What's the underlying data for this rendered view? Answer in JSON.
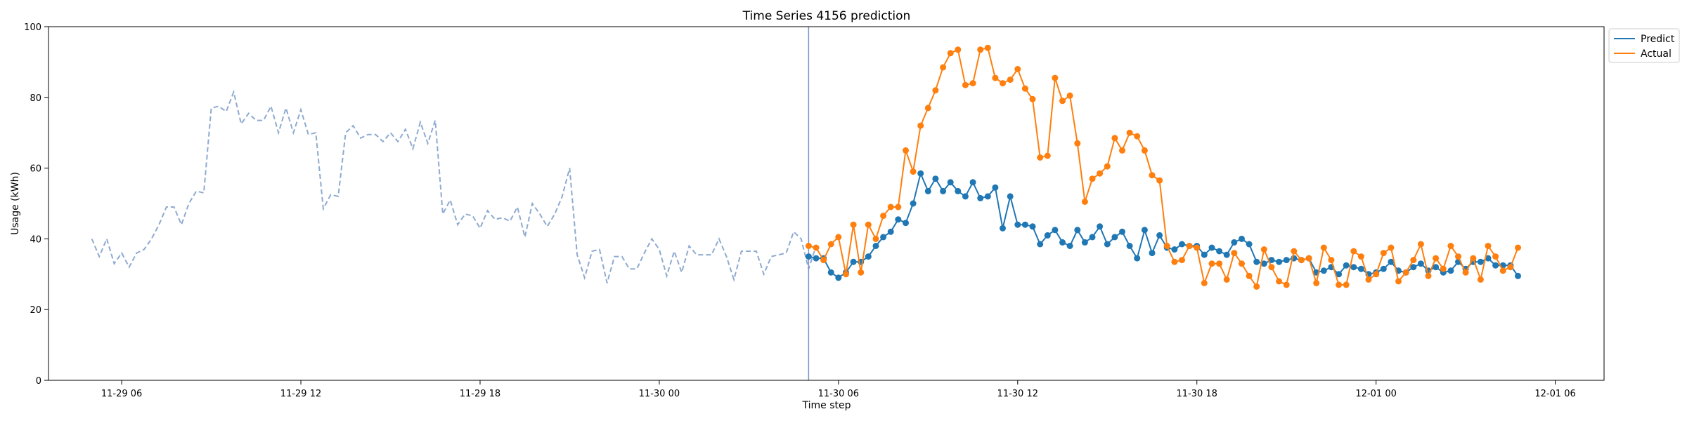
{
  "chart_data": {
    "type": "line",
    "title": "Time Series 4156 prediction",
    "xlabel": "Time step",
    "ylabel": "Usage (kWh)",
    "ylim": [
      0,
      100
    ],
    "yticks": [
      0,
      20,
      40,
      60,
      80,
      100
    ],
    "x_unit": "time",
    "x_range": [
      "2024-11-29 03:33",
      "2024-12-01 07:38"
    ],
    "xticks": [
      {
        "label": "11-29 06",
        "t": "2024-11-29 06:00"
      },
      {
        "label": "11-29 12",
        "t": "2024-11-29 12:00"
      },
      {
        "label": "11-29 18",
        "t": "2024-11-29 18:00"
      },
      {
        "label": "11-30 00",
        "t": "2024-11-30 00:00"
      },
      {
        "label": "11-30 06",
        "t": "2024-11-30 06:00"
      },
      {
        "label": "11-30 12",
        "t": "2024-11-30 12:00"
      },
      {
        "label": "11-30 18",
        "t": "2024-11-30 18:00"
      },
      {
        "label": "12-01 00",
        "t": "2024-12-01 00:00"
      },
      {
        "label": "12-01 06",
        "t": "2024-12-01 06:00"
      }
    ],
    "forecast_start": "2024-11-30 05:00",
    "legend": {
      "placement": "upper-right outside",
      "entries": [
        "Predict",
        "Actual"
      ]
    },
    "colors": {
      "predict": "#1f77b4",
      "actual": "#ff7f0e",
      "history": "#8eaad0",
      "divider": "#7b93c2"
    },
    "history": {
      "style": "dashed",
      "start": "2024-11-29 05:00",
      "step_minutes": 15,
      "values": [
        40,
        35,
        40,
        33,
        36,
        32,
        36,
        37,
        40,
        44,
        49,
        49,
        44,
        50,
        53.5,
        53,
        77,
        77.5,
        76,
        81.5,
        72.5,
        75.5,
        73.5,
        73.5,
        77.5,
        70,
        77,
        70,
        76.5,
        69.5,
        70,
        48.5,
        52.5,
        52,
        70,
        72,
        68.5,
        69.5,
        69.5,
        67.5,
        70,
        67.5,
        71,
        65.5,
        73,
        67,
        73.5,
        47,
        51,
        44,
        47,
        46.5,
        43,
        48,
        45.5,
        46,
        45,
        49,
        40.5,
        50,
        47,
        43.5,
        47,
        52,
        60,
        35.5,
        29,
        36.5,
        37,
        27.5,
        35,
        35,
        31.5,
        31.5,
        36,
        40,
        37,
        29.5,
        36.5,
        30.5,
        38,
        35.5,
        35.5,
        35.5,
        40,
        35,
        28.5,
        36.5,
        36.5,
        36.5,
        30,
        35,
        35.5,
        36,
        42,
        40,
        31.5,
        38
      ]
    },
    "series": [
      {
        "name": "Predict",
        "start": "2024-11-30 05:00",
        "step_minutes": 15,
        "values": [
          35,
          34.5,
          34.5,
          30.5,
          29,
          30.5,
          33.5,
          33.5,
          35,
          38,
          40.5,
          42,
          45.5,
          44.5,
          50,
          58.5,
          53.5,
          57,
          53.5,
          56,
          53.5,
          52,
          56,
          51.5,
          52,
          54.5,
          43,
          52,
          44,
          44,
          43.5,
          38.5,
          41,
          42.5,
          39,
          38,
          42.5,
          39,
          40.5,
          43.5,
          38.5,
          40.5,
          42,
          38,
          34.5,
          42.5,
          36,
          41,
          37.5,
          37,
          38.5,
          38,
          38,
          35.5,
          37.5,
          36.5,
          35.5,
          39,
          40,
          38.5,
          33.5,
          33,
          34,
          33.5,
          34,
          34.5,
          34,
          34.5,
          30.5,
          31,
          32,
          30,
          32.5,
          32,
          31.5,
          30,
          30.5,
          31.5,
          33.5,
          31,
          30.5,
          32,
          33,
          31,
          32,
          30.5,
          31,
          33.5,
          31.5,
          33.5,
          33.5,
          34.5,
          32.5,
          32.5,
          32.5,
          29.5
        ]
      },
      {
        "name": "Actual",
        "start": "2024-11-30 05:00",
        "step_minutes": 15,
        "values": [
          38,
          37.5,
          34,
          38.5,
          40.5,
          30,
          44,
          30.5,
          44,
          40,
          46.5,
          49,
          49,
          65,
          59,
          72,
          77,
          82,
          88.5,
          92.5,
          93.5,
          83.5,
          84,
          93.5,
          94,
          85.5,
          84,
          85,
          88,
          82.5,
          79.5,
          63,
          63.5,
          85.5,
          79,
          80.5,
          67,
          50.5,
          57,
          58.5,
          60.5,
          68.5,
          65,
          70,
          69,
          65,
          58,
          56.5,
          38,
          33.5,
          34,
          38,
          37.5,
          27.5,
          33,
          33,
          28.5,
          36,
          33,
          29.5,
          26.5,
          37,
          32,
          28,
          27,
          36.5,
          34,
          34.5,
          27.5,
          37.5,
          34,
          27,
          27,
          36.5,
          35,
          28.5,
          30,
          36,
          37.5,
          28,
          30.5,
          34,
          38.5,
          29.5,
          34.5,
          31.5,
          38,
          35,
          30.5,
          34.5,
          28.5,
          38,
          35,
          31,
          32,
          37.5
        ]
      }
    ]
  }
}
